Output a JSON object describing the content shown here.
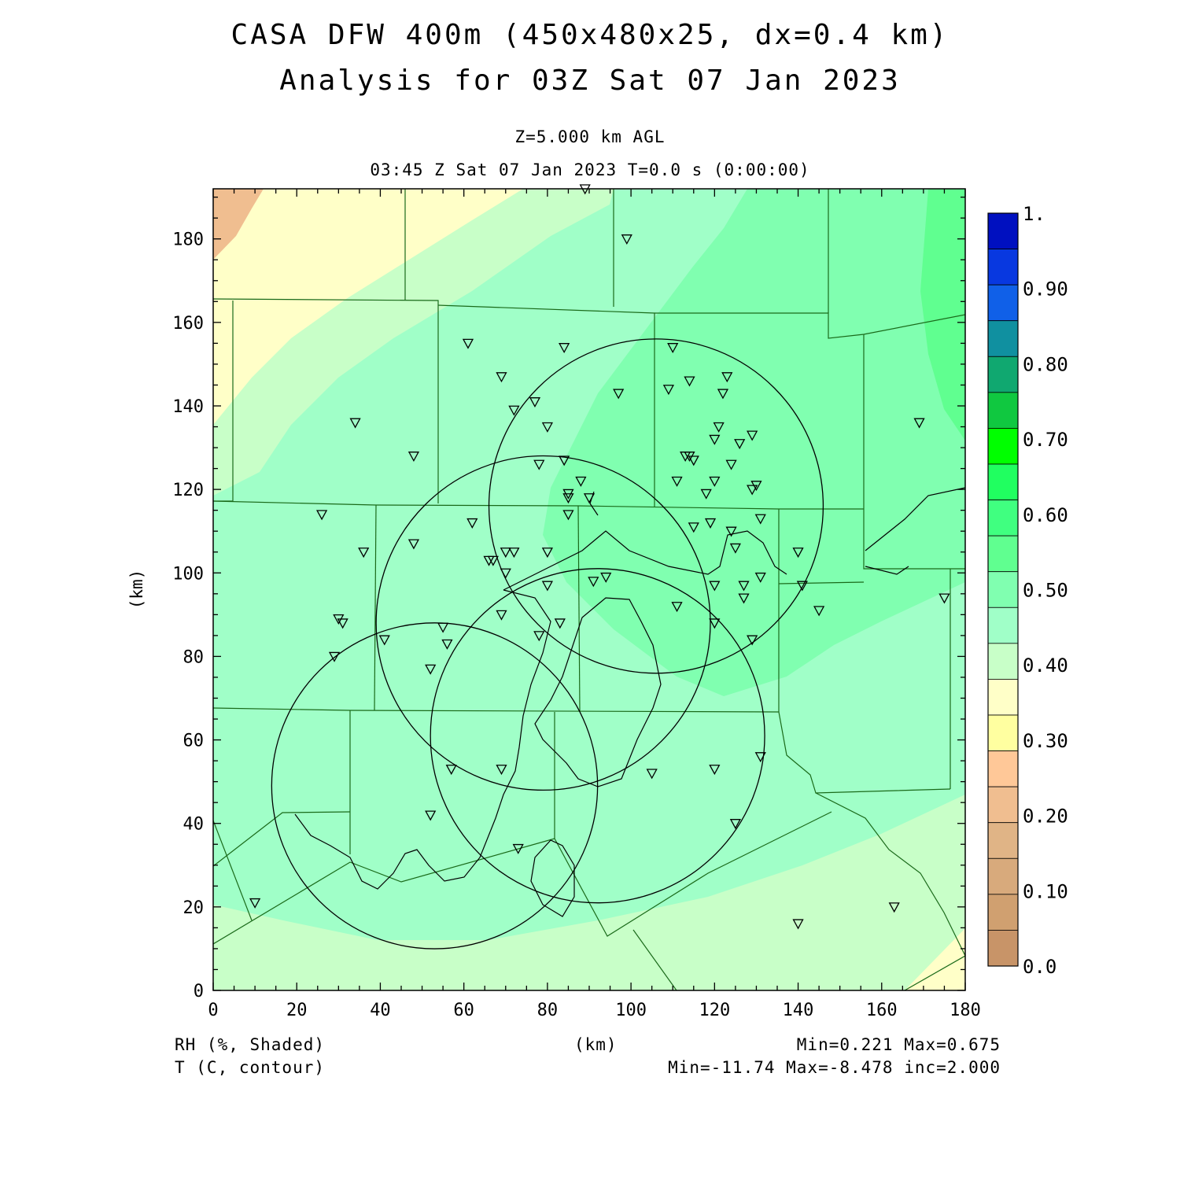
{
  "header": {
    "title_line1": "CASA DFW 400m (450x480x25, dx=0.4 km)",
    "title_line2": "Analysis for 03Z Sat 07 Jan 2023",
    "level": "Z=5.000 km AGL",
    "valid_time": "03:45 Z Sat 07 Jan 2023   T=0.0 s (0:00:00)"
  },
  "footer": {
    "shaded_field": "RH (%, Shaded)",
    "contour_field": "T (C, contour)",
    "x_unit": "(km)",
    "shaded_range": "Min=0.221 Max=0.675",
    "contour_range": "Min=-11.74 Max=-8.478 inc=2.000"
  },
  "chart_data": {
    "type": "heatmap",
    "xlabel": "(km)",
    "ylabel": "(km)",
    "xlim": [
      0,
      180
    ],
    "ylim": [
      0,
      192
    ],
    "x_ticks": [
      "0",
      "20",
      "40",
      "60",
      "80",
      "100",
      "120",
      "140",
      "160",
      "180"
    ],
    "y_ticks": [
      "0",
      "20",
      "40",
      "60",
      "80",
      "100",
      "120",
      "140",
      "160",
      "180"
    ],
    "colorbar": {
      "levels": [
        0.0,
        0.05,
        0.1,
        0.15,
        0.2,
        0.25,
        0.3,
        0.35,
        0.4,
        0.45,
        0.5,
        0.55,
        0.6,
        0.65,
        0.7,
        0.75,
        0.8,
        0.85,
        0.9,
        0.95,
        1.0
      ],
      "colors": [
        "#c89468",
        "#d0a070",
        "#d8aa7c",
        "#e0b486",
        "#f0be90",
        "#ffc898",
        "#ffffa0",
        "#ffffc8",
        "#c8ffc8",
        "#a0ffc8",
        "#80ffb0",
        "#60ff90",
        "#40ff80",
        "#20ff60",
        "#00ff00",
        "#10c840",
        "#10a870",
        "#1090a0",
        "#1060e8",
        "#0838e0",
        "#0010c0"
      ],
      "tick_labels": [
        "0.0",
        "0.10",
        "0.20",
        "0.30",
        "0.40",
        "0.50",
        "0.60",
        "0.70",
        "0.80",
        "0.90",
        "1."
      ]
    },
    "radar_rings": [
      {
        "cx": 53,
        "cy": 49,
        "r": 39
      },
      {
        "cx": 79,
        "cy": 88,
        "r": 40
      },
      {
        "cx": 92,
        "cy": 61,
        "r": 40
      },
      {
        "cx": 106,
        "cy": 116,
        "r": 40
      }
    ],
    "stations": [
      [
        89,
        192
      ],
      [
        99,
        180
      ],
      [
        61,
        155
      ],
      [
        84,
        154
      ],
      [
        110,
        154
      ],
      [
        69,
        147
      ],
      [
        123,
        147
      ],
      [
        114,
        146
      ],
      [
        109,
        144
      ],
      [
        122,
        143
      ],
      [
        97,
        143
      ],
      [
        77,
        141
      ],
      [
        72,
        139
      ],
      [
        34,
        136
      ],
      [
        169,
        136
      ],
      [
        121,
        135
      ],
      [
        80,
        135
      ],
      [
        129,
        133
      ],
      [
        120,
        132
      ],
      [
        126,
        131
      ],
      [
        48,
        128
      ],
      [
        113,
        128
      ],
      [
        114,
        128
      ],
      [
        115,
        127
      ],
      [
        84,
        127
      ],
      [
        78,
        126
      ],
      [
        124,
        126
      ],
      [
        88,
        122
      ],
      [
        111,
        122
      ],
      [
        120,
        122
      ],
      [
        130,
        121
      ],
      [
        129,
        120
      ],
      [
        85,
        119
      ],
      [
        118,
        119
      ],
      [
        85,
        118
      ],
      [
        90,
        118
      ],
      [
        26,
        114
      ],
      [
        85,
        114
      ],
      [
        62,
        112
      ],
      [
        119,
        112
      ],
      [
        115,
        111
      ],
      [
        124,
        110
      ],
      [
        131,
        113
      ],
      [
        125,
        106
      ],
      [
        36,
        105
      ],
      [
        48,
        107
      ],
      [
        80,
        105
      ],
      [
        70,
        105
      ],
      [
        72,
        105
      ],
      [
        140,
        105
      ],
      [
        66,
        103
      ],
      [
        67,
        103
      ],
      [
        70,
        100
      ],
      [
        127,
        97
      ],
      [
        94,
        99
      ],
      [
        91,
        98
      ],
      [
        80,
        97
      ],
      [
        131,
        99
      ],
      [
        120,
        97
      ],
      [
        141,
        97
      ],
      [
        127,
        94
      ],
      [
        175,
        94
      ],
      [
        111,
        92
      ],
      [
        145,
        91
      ],
      [
        69,
        90
      ],
      [
        30,
        89
      ],
      [
        31,
        88
      ],
      [
        120,
        88
      ],
      [
        83,
        88
      ],
      [
        55,
        87
      ],
      [
        78,
        85
      ],
      [
        41,
        84
      ],
      [
        129,
        84
      ],
      [
        56,
        83
      ],
      [
        29,
        80
      ],
      [
        52,
        77
      ],
      [
        131,
        56
      ],
      [
        57,
        53
      ],
      [
        69,
        53
      ],
      [
        120,
        53
      ],
      [
        105,
        52
      ],
      [
        52,
        42
      ],
      [
        125,
        40
      ],
      [
        73,
        34
      ],
      [
        10,
        21
      ],
      [
        163,
        20
      ],
      [
        140,
        16
      ]
    ]
  }
}
